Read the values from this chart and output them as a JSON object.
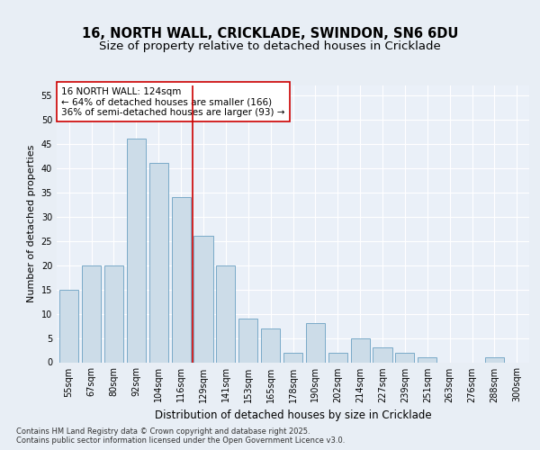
{
  "title1": "16, NORTH WALL, CRICKLADE, SWINDON, SN6 6DU",
  "title2": "Size of property relative to detached houses in Cricklade",
  "xlabel": "Distribution of detached houses by size in Cricklade",
  "ylabel": "Number of detached properties",
  "categories": [
    "55sqm",
    "67sqm",
    "80sqm",
    "92sqm",
    "104sqm",
    "116sqm",
    "129sqm",
    "141sqm",
    "153sqm",
    "165sqm",
    "178sqm",
    "190sqm",
    "202sqm",
    "214sqm",
    "227sqm",
    "239sqm",
    "251sqm",
    "263sqm",
    "276sqm",
    "288sqm",
    "300sqm"
  ],
  "values": [
    15,
    20,
    20,
    46,
    41,
    34,
    26,
    20,
    9,
    7,
    2,
    8,
    2,
    5,
    3,
    2,
    1,
    0,
    0,
    1,
    0
  ],
  "bar_color": "#ccdce8",
  "bar_edge_color": "#7aaac8",
  "vline_x": 5.5,
  "vline_color": "#cc0000",
  "annotation_text": "16 NORTH WALL: 124sqm\n← 64% of detached houses are smaller (166)\n36% of semi-detached houses are larger (93) →",
  "annotation_box_color": "#ffffff",
  "annotation_box_edge": "#cc0000",
  "ylim": [
    0,
    57
  ],
  "yticks": [
    0,
    5,
    10,
    15,
    20,
    25,
    30,
    35,
    40,
    45,
    50,
    55
  ],
  "background_color": "#e8eef5",
  "plot_bg_color": "#eaf0f8",
  "footer": "Contains HM Land Registry data © Crown copyright and database right 2025.\nContains public sector information licensed under the Open Government Licence v3.0.",
  "title1_fontsize": 10.5,
  "title2_fontsize": 9.5,
  "xlabel_fontsize": 8.5,
  "ylabel_fontsize": 8,
  "tick_fontsize": 7,
  "annotation_fontsize": 7.5,
  "footer_fontsize": 6
}
